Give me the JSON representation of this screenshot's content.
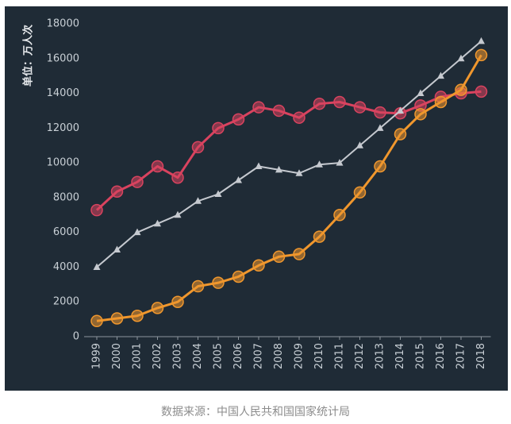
{
  "source_note": "数据来源：中国人民共和国国家统计局",
  "chart_data": {
    "type": "line",
    "title": "",
    "xlabel": "",
    "ylabel": "单位：万人次",
    "ylim": [
      0,
      18000
    ],
    "yticks": [
      0,
      2000,
      4000,
      6000,
      8000,
      10000,
      12000,
      14000,
      16000,
      18000
    ],
    "grid": false,
    "categories": [
      "1999",
      "2000",
      "2001",
      "2002",
      "2003",
      "2004",
      "2005",
      "2006",
      "2007",
      "2008",
      "2009",
      "2010",
      "2011",
      "2012",
      "2013",
      "2014",
      "2015",
      "2016",
      "2017",
      "2018"
    ],
    "series": [
      {
        "color": "#d9435f",
        "marker": "circle",
        "values": [
          7280,
          8350,
          8900,
          9800,
          9150,
          10900,
          12000,
          12500,
          13200,
          13000,
          12600,
          13400,
          13500,
          13200,
          12900,
          12850,
          13300,
          13800,
          14000,
          14100
        ]
      },
      {
        "color": "#c5c9cf",
        "marker": "triangle",
        "values": [
          4000,
          5000,
          6000,
          6500,
          7000,
          7800,
          8200,
          9000,
          9800,
          9600,
          9400,
          9900,
          10000,
          11000,
          12000,
          13000,
          14000,
          15000,
          16000,
          17000
        ]
      },
      {
        "color": "#f0972d",
        "marker": "circle",
        "values": [
          900,
          1050,
          1200,
          1650,
          2000,
          2900,
          3100,
          3450,
          4100,
          4600,
          4750,
          5750,
          7000,
          8300,
          9800,
          11650,
          12800,
          13500,
          14200,
          16200
        ]
      }
    ]
  }
}
